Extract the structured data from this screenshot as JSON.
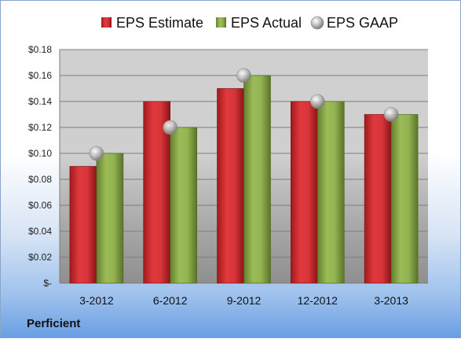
{
  "chart_data": {
    "type": "bar",
    "categories": [
      "3-2012",
      "6-2012",
      "9-2012",
      "12-2012",
      "3-2013"
    ],
    "series": [
      {
        "name": "EPS Estimate",
        "values": [
          0.09,
          0.14,
          0.15,
          0.14,
          0.13
        ],
        "color": "#c0282d"
      },
      {
        "name": "EPS Actual",
        "values": [
          0.1,
          0.12,
          0.16,
          0.14,
          0.13
        ],
        "color": "#7a9a3c"
      },
      {
        "name": "EPS GAAP",
        "type": "scatter",
        "values": [
          0.1,
          0.12,
          0.16,
          0.14,
          0.13
        ],
        "color": "#b8b8b8"
      }
    ],
    "ylim": [
      0,
      0.18
    ],
    "yticks": [
      0,
      0.02,
      0.04,
      0.06,
      0.08,
      0.1,
      0.12,
      0.14,
      0.16,
      0.18
    ],
    "ytick_labels": [
      "$-",
      "$0.02",
      "$0.04",
      "$0.06",
      "$0.08",
      "$0.10",
      "$0.12",
      "$0.14",
      "$0.16",
      "$0.18"
    ],
    "grid": true,
    "legend": "top"
  },
  "company": "Perficient"
}
